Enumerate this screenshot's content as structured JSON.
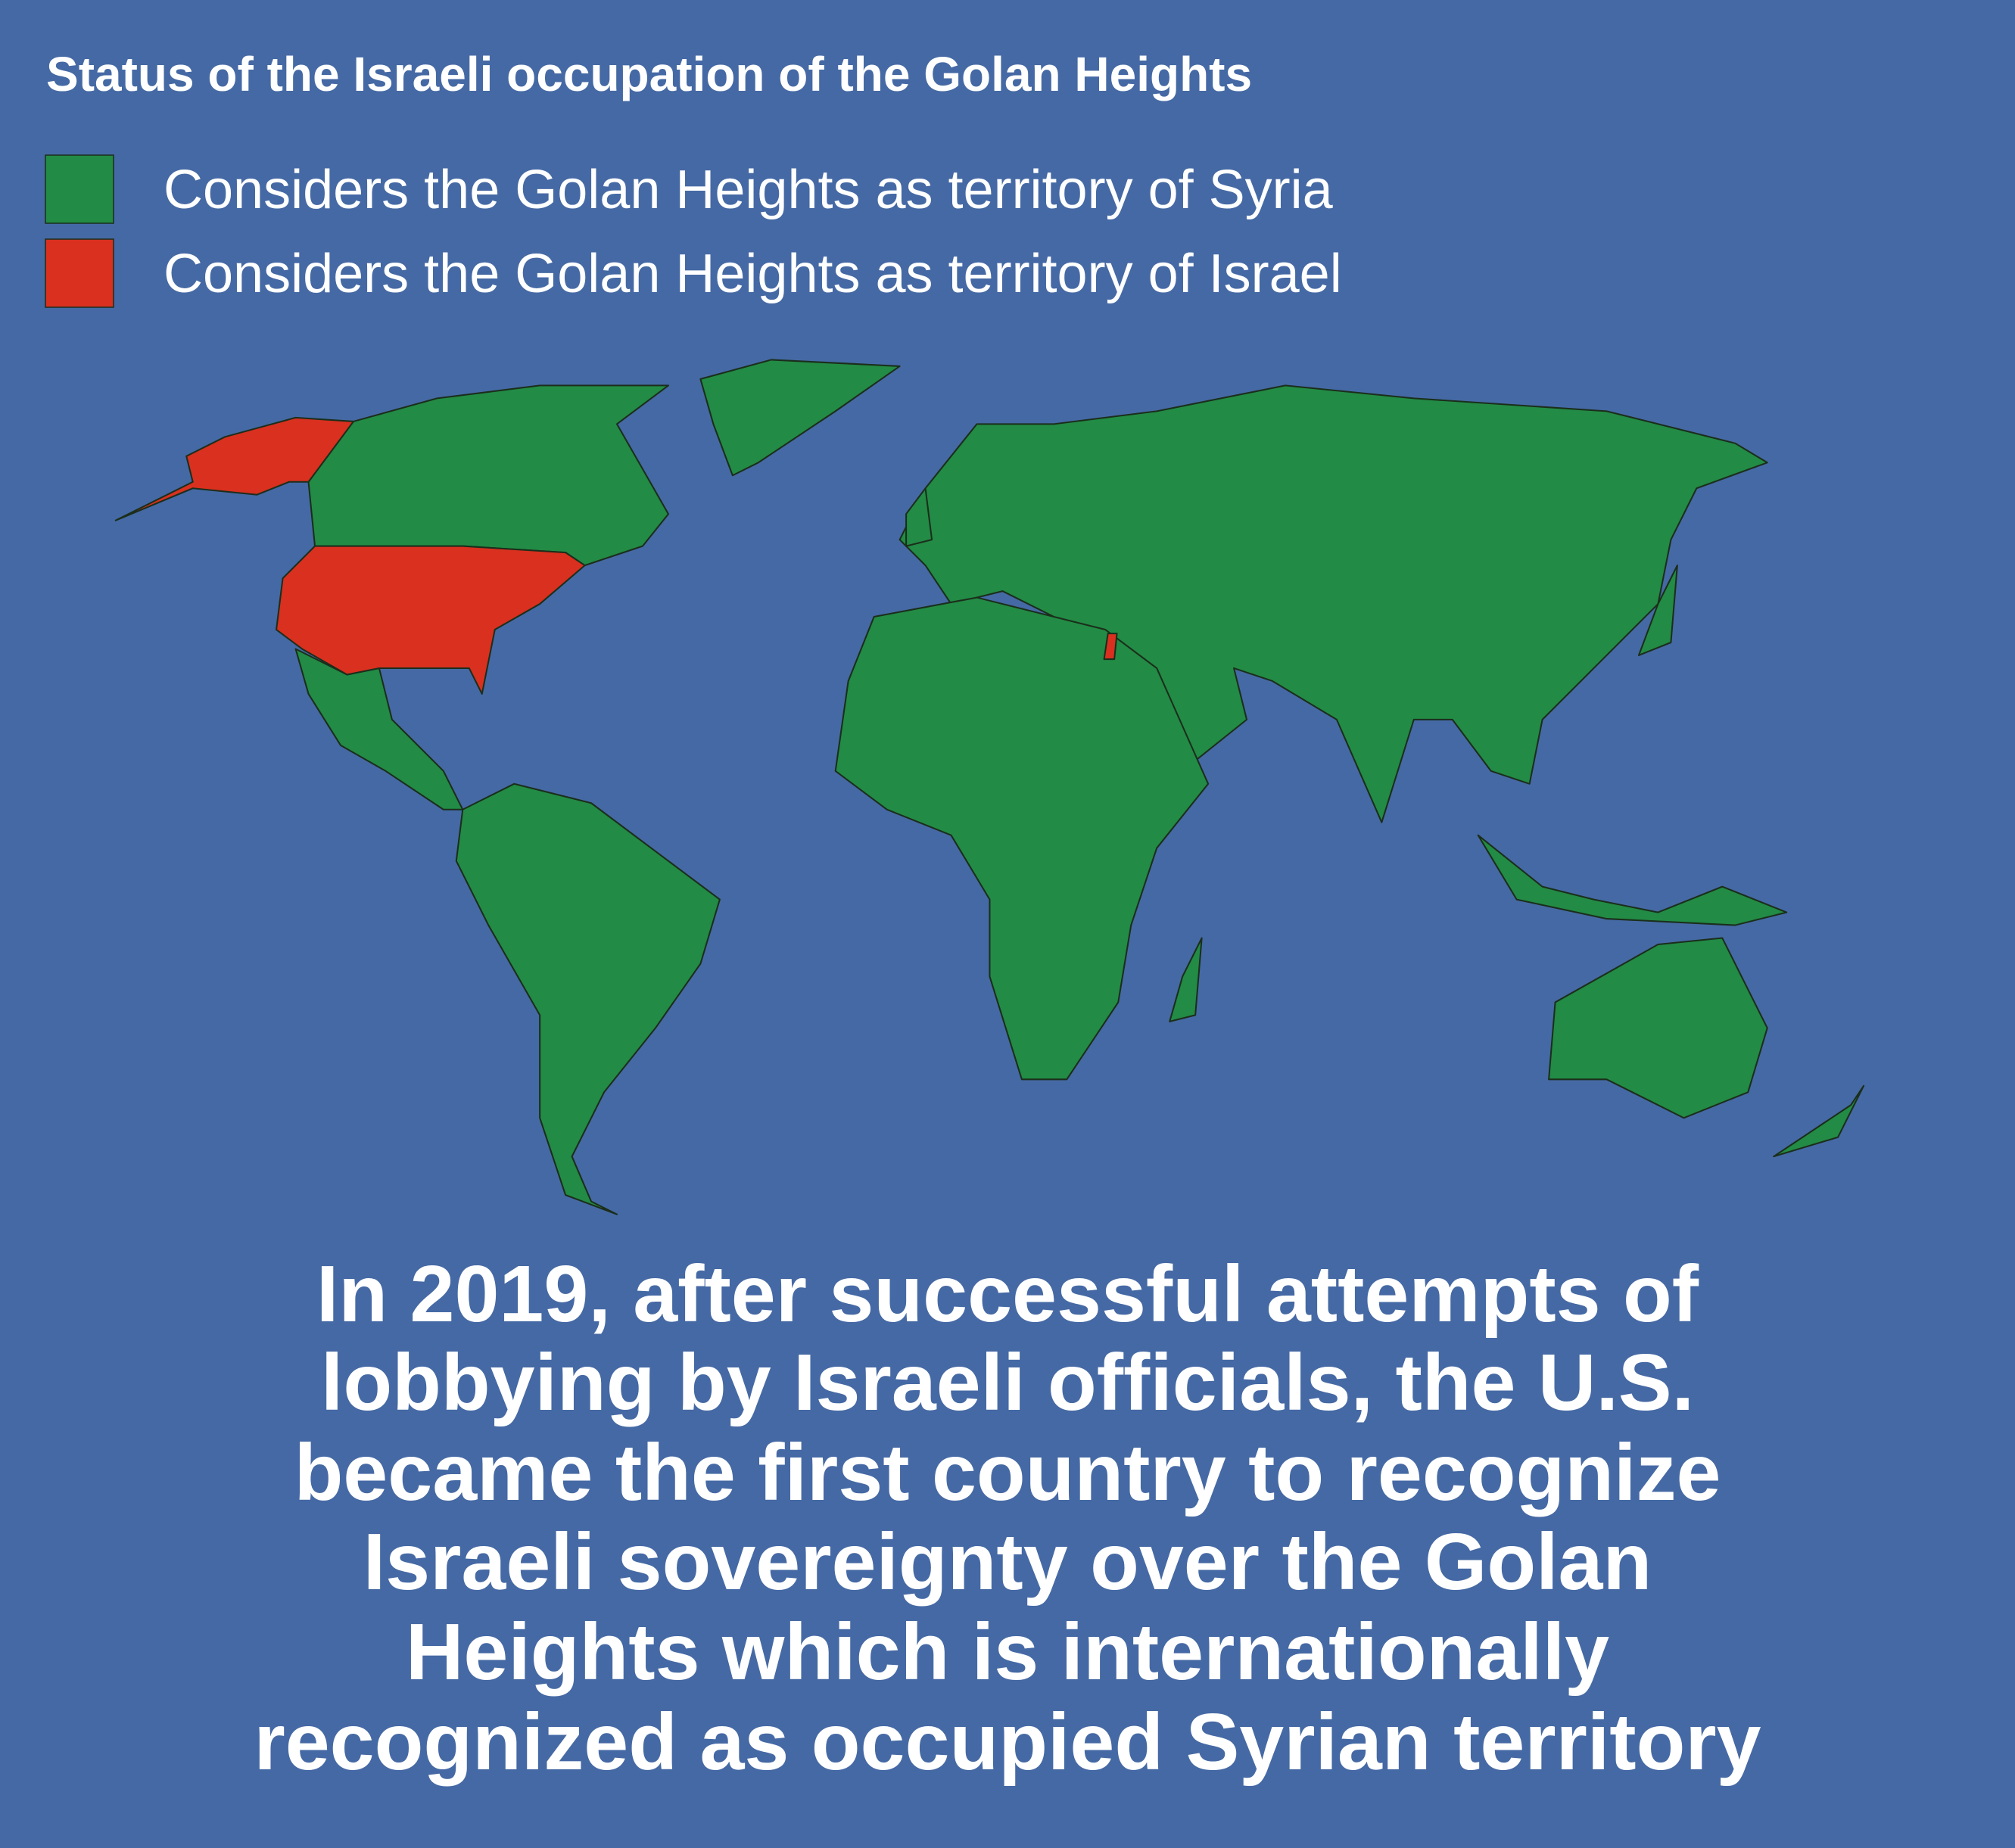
{
  "title": "Status of the Israeli occupation of the Golan Heights",
  "legend": [
    {
      "label": "Considers the Golan Heights as territory of Syria",
      "color": "#228b45"
    },
    {
      "label": "Considers the Golan Heights as territory of Israel",
      "color": "#d9301f"
    }
  ],
  "caption": [
    "In 2019, after successful attempts of",
    "lobbying by Israeli officials, the U.S.",
    "became the first country to recognize",
    "Israeli sovereignty over the Golan",
    "Heights which is internationally",
    "recognized as occupied Syrian territory"
  ]
}
